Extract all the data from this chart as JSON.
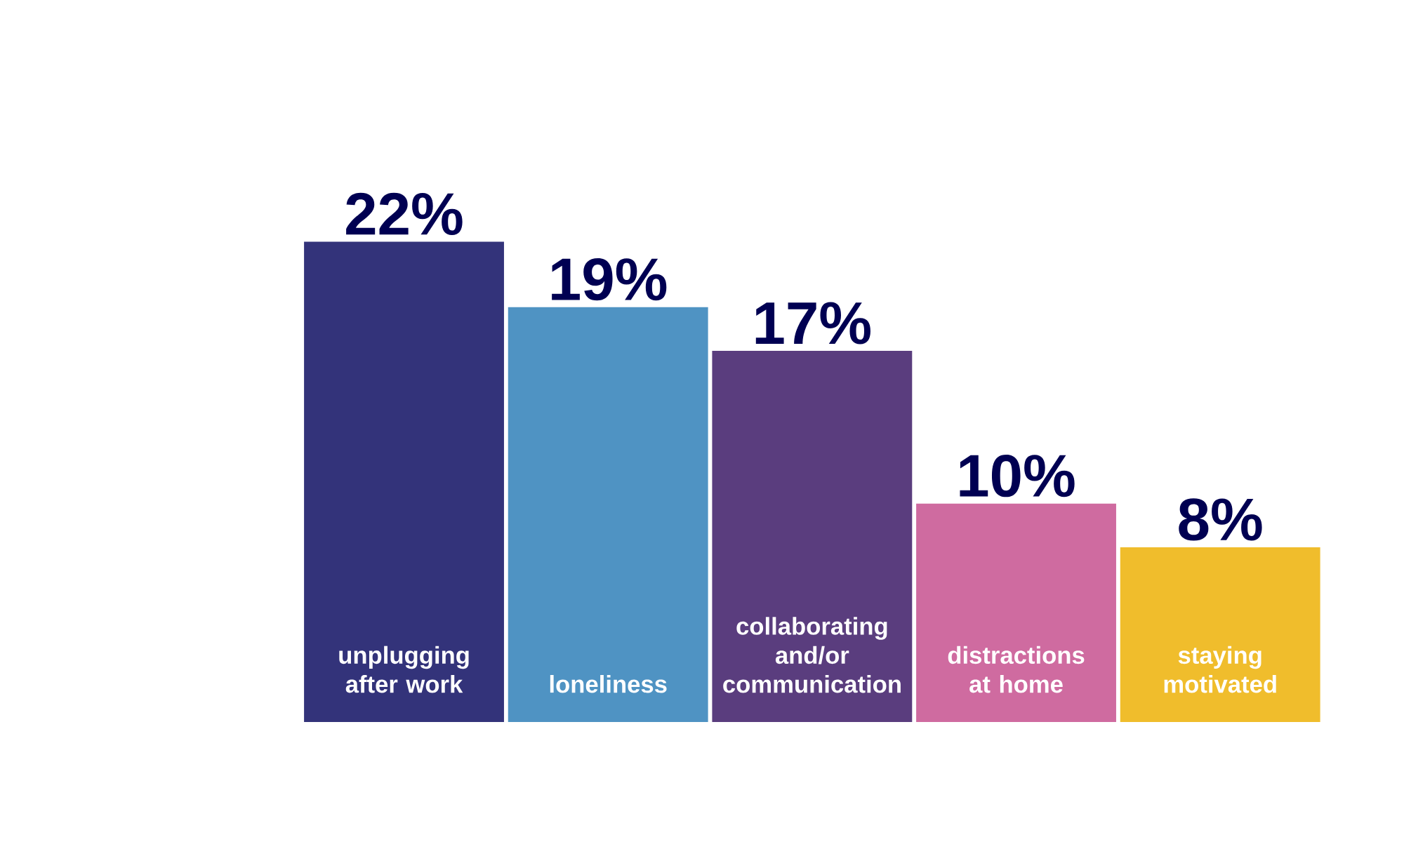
{
  "chart_data": {
    "type": "bar",
    "categories": [
      "unplugging after work",
      "loneliness",
      "collaborating and/or communication",
      "distractions at home",
      "staying motivated"
    ],
    "values": [
      22,
      19,
      17,
      10,
      8
    ],
    "value_labels": [
      "22%",
      "19%",
      "17%",
      "10%",
      "8%"
    ],
    "colors": [
      "#33337a",
      "#4f93c3",
      "#5a3d7e",
      "#cf6ba0",
      "#f0bd2c"
    ]
  }
}
